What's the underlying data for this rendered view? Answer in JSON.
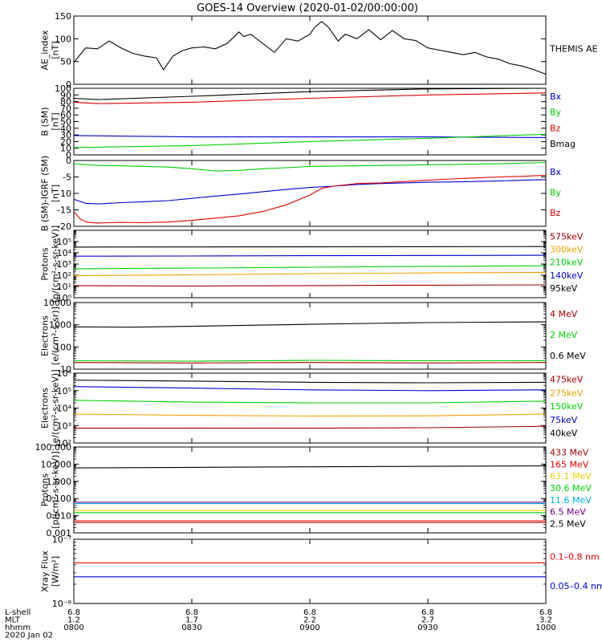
{
  "title": "GOES-14 Overview (2020-01-02/00:00:00)",
  "time_axis": {
    "row_labels": [
      "L-shell",
      "MLT",
      "hhmm",
      "2020 Jan 02"
    ],
    "ticks": [
      {
        "lshell": "6.8",
        "mlt": "1.2",
        "hhmm": "0800"
      },
      {
        "lshell": "6.8",
        "mlt": "1.7",
        "hhmm": "0830"
      },
      {
        "lshell": "6.8",
        "mlt": "2.2",
        "hhmm": "0900"
      },
      {
        "lshell": "6.8",
        "mlt": "2.7",
        "hhmm": "0930"
      },
      {
        "lshell": "6.8",
        "mlt": "3.2",
        "hhmm": "1000"
      }
    ]
  },
  "colors": {
    "black": "#000000",
    "red": "#e00000",
    "green": "#00d000",
    "blue": "#0000d0",
    "orange": "#f0a000",
    "darkred": "#a00000",
    "cyan": "#00b0e0",
    "purple": "#6a0080",
    "yellow": "#e8d000"
  },
  "chart_data": [
    {
      "type": "line",
      "ylabel": "AE_index\n[nT]",
      "scale": "linear",
      "ylim": [
        0,
        150
      ],
      "ytick_labels": [
        "0",
        "50",
        "100",
        "150"
      ],
      "ytick_values": [
        0,
        50,
        100,
        150
      ],
      "x_range_hours": [
        8,
        10
      ],
      "series": [
        {
          "name": "THEMIS AE",
          "color": "#000000",
          "x": [
            8.0,
            8.05,
            8.1,
            8.15,
            8.2,
            8.25,
            8.3,
            8.35,
            8.38,
            8.42,
            8.46,
            8.5,
            8.55,
            8.6,
            8.65,
            8.7,
            8.72,
            8.75,
            8.8,
            8.85,
            8.9,
            8.95,
            9.0,
            9.02,
            9.05,
            9.08,
            9.12,
            9.15,
            9.2,
            9.25,
            9.3,
            9.35,
            9.4,
            9.45,
            9.5,
            9.55,
            9.6,
            9.65,
            9.7,
            9.75,
            9.8,
            9.85,
            9.9,
            9.95,
            10.0
          ],
          "y": [
            48,
            80,
            78,
            95,
            80,
            68,
            62,
            58,
            32,
            62,
            74,
            80,
            82,
            78,
            90,
            115,
            105,
            110,
            90,
            70,
            100,
            95,
            110,
            125,
            138,
            125,
            95,
            110,
            100,
            120,
            98,
            118,
            100,
            96,
            80,
            75,
            70,
            65,
            70,
            60,
            55,
            45,
            40,
            32,
            22
          ]
        }
      ]
    },
    {
      "type": "line",
      "ylabel": "B (SM)\n[nT]",
      "scale": "linear",
      "ylim": [
        0,
        100
      ],
      "ytick_labels": [
        "0",
        "10",
        "20",
        "30",
        "40",
        "50",
        "60",
        "70",
        "80",
        "90",
        "100"
      ],
      "ytick_values": [
        0,
        10,
        20,
        30,
        40,
        50,
        60,
        70,
        80,
        90,
        100
      ],
      "x_range_hours": [
        8,
        10
      ],
      "series": [
        {
          "name": "Bx",
          "color": "#0000d0",
          "x": [
            8.0,
            8.5,
            9.0,
            9.5,
            10.0
          ],
          "y": [
            29,
            27,
            27,
            27,
            26
          ]
        },
        {
          "name": "By",
          "color": "#00d000",
          "x": [
            8.0,
            8.5,
            9.0,
            9.5,
            10.0
          ],
          "y": [
            11,
            14,
            20,
            25,
            31
          ]
        },
        {
          "name": "Bz",
          "color": "#e00000",
          "x": [
            8.0,
            8.1,
            8.5,
            9.0,
            9.5,
            10.0
          ],
          "y": [
            79,
            77,
            79,
            85,
            90,
            93
          ]
        },
        {
          "name": "Bmag",
          "color": "#000000",
          "x": [
            8.0,
            8.1,
            8.5,
            9.0,
            9.5,
            10.0
          ],
          "y": [
            85,
            83,
            88,
            95,
            99,
            100
          ]
        }
      ]
    },
    {
      "type": "line",
      "ylabel": "B (SM)-IGRF (SM)\n[nT]",
      "scale": "linear",
      "ylim": [
        -20,
        0
      ],
      "ytick_labels": [
        "-20",
        "-15",
        "-10",
        "-5",
        "0"
      ],
      "ytick_values": [
        -20,
        -15,
        -10,
        -5,
        0
      ],
      "x_range_hours": [
        8,
        10
      ],
      "series": [
        {
          "name": "Bx",
          "color": "#0000d0",
          "x": [
            8.0,
            8.05,
            8.1,
            8.2,
            8.3,
            8.4,
            8.5,
            8.6,
            8.7,
            8.8,
            8.9,
            9.0,
            9.1,
            9.2,
            9.3,
            9.4,
            9.5,
            9.6,
            9.7,
            9.8,
            9.9,
            10.0
          ],
          "y": [
            -11.8,
            -13.0,
            -13.2,
            -12.8,
            -12.5,
            -12.2,
            -11.5,
            -10.8,
            -10.2,
            -9.5,
            -8.8,
            -8.2,
            -7.8,
            -7.3,
            -7.0,
            -6.8,
            -6.6,
            -6.5,
            -6.4,
            -6.2,
            -6.0,
            -5.8
          ]
        },
        {
          "name": "By",
          "color": "#00d000",
          "x": [
            8.0,
            8.1,
            8.2,
            8.3,
            8.4,
            8.5,
            8.6,
            8.7,
            8.8,
            8.9,
            9.0,
            9.2,
            9.4,
            9.6,
            9.8,
            10.0
          ],
          "y": [
            -1.0,
            -1.5,
            -1.6,
            -1.8,
            -2.0,
            -2.5,
            -3.2,
            -3.0,
            -2.5,
            -2.2,
            -1.8,
            -1.6,
            -1.4,
            -1.2,
            -1.0,
            -0.6
          ]
        },
        {
          "name": "Bz",
          "color": "#e00000",
          "x": [
            8.0,
            8.03,
            8.06,
            8.1,
            8.2,
            8.3,
            8.4,
            8.5,
            8.6,
            8.7,
            8.8,
            8.9,
            9.0,
            9.05,
            9.1,
            9.2,
            9.3,
            9.4,
            9.5,
            9.6,
            9.7,
            9.8,
            9.9,
            10.0
          ],
          "y": [
            -15.5,
            -18,
            -18.8,
            -19.0,
            -18.8,
            -18.9,
            -18.7,
            -18.2,
            -17.5,
            -16.8,
            -15.5,
            -13.5,
            -10.5,
            -8.5,
            -7.8,
            -7.0,
            -6.8,
            -6.4,
            -6.0,
            -5.6,
            -5.3,
            -5.0,
            -4.8,
            -4.5
          ]
        }
      ]
    },
    {
      "type": "line",
      "ylabel": "Protons\n[p/(cm²-s-sr-keV)]",
      "scale": "log",
      "ylim": [
        1,
        1000000
      ],
      "ytick_labels": [
        "10⁰",
        "10¹",
        "10²",
        "10³",
        "10⁴",
        "10⁵"
      ],
      "ytick_values": [
        1,
        10,
        100,
        1000,
        10000,
        100000
      ],
      "x_range_hours": [
        8,
        10
      ],
      "series": [
        {
          "name": "575keV",
          "color": "#a00000",
          "x": [
            8.0,
            8.5,
            9.0,
            9.5,
            10.0
          ],
          "y": [
            12,
            11,
            12,
            13,
            14
          ]
        },
        {
          "name": "300keV",
          "color": "#f0a000",
          "x": [
            8.0,
            8.5,
            9.0,
            9.5,
            10.0
          ],
          "y": [
            90,
            110,
            140,
            160,
            180
          ]
        },
        {
          "name": "210keV",
          "color": "#00d000",
          "x": [
            8.0,
            8.5,
            9.0,
            9.5,
            10.0
          ],
          "y": [
            380,
            430,
            520,
            620,
            700
          ]
        },
        {
          "name": "140keV",
          "color": "#0000d0",
          "x": [
            8.0,
            8.5,
            9.0,
            9.5,
            10.0
          ],
          "y": [
            5000,
            5200,
            5500,
            5700,
            6000
          ]
        },
        {
          "name": "95keV",
          "color": "#000000",
          "x": [
            8.0,
            8.5,
            9.0,
            9.5,
            10.0
          ],
          "y": [
            32000,
            33000,
            34000,
            35000,
            36000
          ]
        }
      ]
    },
    {
      "type": "line",
      "ylabel": "Electrons\n[e/(cm²-s-sr)]",
      "scale": "log",
      "ylim": [
        10,
        10000
      ],
      "ytick_labels": [
        "10",
        "100",
        "1000",
        "10000"
      ],
      "ytick_values": [
        10,
        100,
        1000,
        10000
      ],
      "x_range_hours": [
        8,
        10
      ],
      "series": [
        {
          "name": "4 MeV",
          "color": "#a00000",
          "x": [
            8.0,
            8.5,
            9.0,
            9.5,
            10.0
          ],
          "y": [
            20,
            19,
            20,
            19,
            20
          ]
        },
        {
          "name": "2 MeV",
          "color": "#00d000",
          "x": [
            8.0,
            8.5,
            9.0,
            9.5,
            10.0
          ],
          "y": [
            24,
            23,
            25,
            24,
            24
          ]
        },
        {
          "name": "0.6 MeV",
          "color": "#000000",
          "x": [
            8.0,
            8.25,
            8.5,
            8.75,
            9.0,
            9.25,
            9.5,
            9.75,
            10.0
          ],
          "y": [
            800,
            780,
            850,
            950,
            1050,
            1150,
            1250,
            1300,
            1350
          ]
        }
      ]
    },
    {
      "type": "line",
      "ylabel": "Electrons\n[e/(cm²-s-sr-keV)]",
      "scale": "log",
      "ylim": [
        100,
        1000000
      ],
      "ytick_labels": [
        "10²",
        "10³",
        "10⁴",
        "10⁵",
        "10⁶"
      ],
      "ytick_values": [
        100,
        1000,
        10000,
        100000,
        1000000
      ],
      "x_range_hours": [
        8,
        10
      ],
      "series": [
        {
          "name": "475keV",
          "color": "#a00000",
          "x": [
            8.0,
            8.5,
            9.0,
            9.5,
            10.0
          ],
          "y": [
            700,
            720,
            700,
            750,
            900
          ]
        },
        {
          "name": "275keV",
          "color": "#f0a000",
          "x": [
            8.0,
            8.5,
            9.0,
            9.5,
            10.0
          ],
          "y": [
            4500,
            3800,
            3500,
            3600,
            4500
          ]
        },
        {
          "name": "150keV",
          "color": "#00d000",
          "x": [
            8.0,
            8.5,
            9.0,
            9.5,
            10.0
          ],
          "y": [
            28000,
            22000,
            20000,
            20000,
            25000
          ]
        },
        {
          "name": "75keV",
          "color": "#0000d0",
          "x": [
            8.0,
            8.5,
            9.0,
            9.5,
            10.0
          ],
          "y": [
            170000,
            140000,
            110000,
            100000,
            110000
          ]
        },
        {
          "name": "40keV",
          "color": "#000000",
          "x": [
            8.0,
            8.5,
            9.0,
            9.5,
            10.0
          ],
          "y": [
            400000,
            350000,
            300000,
            280000,
            300000
          ]
        }
      ]
    },
    {
      "type": "line",
      "ylabel": "Protons\n[p/(cm²-s-sr-keV)]",
      "scale": "log",
      "ylim": [
        0.001,
        100
      ],
      "ytick_labels": [
        "0.001",
        "0.010",
        "0.100",
        "1.000",
        "10.000",
        "100.000"
      ],
      "ytick_values": [
        0.001,
        0.01,
        0.1,
        1,
        10,
        100
      ],
      "x_range_hours": [
        8,
        10
      ],
      "series": [
        {
          "name": "433 MeV",
          "color": "#a00000",
          "x": [
            8.0,
            10.0
          ],
          "y": [
            0.004,
            0.004
          ]
        },
        {
          "name": "165 MeV",
          "color": "#e00000",
          "x": [
            8.0,
            10.0
          ],
          "y": [
            0.005,
            0.005
          ]
        },
        {
          "name": "63.1 MeV",
          "color": "#e8d000",
          "x": [
            8.0,
            10.0
          ],
          "y": [
            0.02,
            0.02
          ]
        },
        {
          "name": "30.6 MeV",
          "color": "#00d000",
          "x": [
            8.0,
            10.0
          ],
          "y": [
            0.015,
            0.015
          ]
        },
        {
          "name": "11.6 MeV",
          "color": "#00b0e0",
          "x": [
            8.0,
            10.0
          ],
          "y": [
            0.05,
            0.05
          ]
        },
        {
          "name": "6.5 MeV",
          "color": "#6a0080",
          "x": [
            8.0,
            10.0
          ],
          "y": [
            0.06,
            0.06
          ]
        },
        {
          "name": "2.5 MeV",
          "color": "#000000",
          "x": [
            8.0,
            8.5,
            9.0,
            9.5,
            10.0
          ],
          "y": [
            6,
            6.5,
            7,
            7.5,
            8
          ]
        }
      ]
    },
    {
      "type": "line",
      "ylabel": "Xray Flux\n[W/m²]",
      "scale": "log",
      "ylim": [
        1e-08,
        1e-07
      ],
      "ytick_labels": [
        "10⁻⁸",
        "10⁻⁷"
      ],
      "ytick_values": [
        1e-08,
        1e-07
      ],
      "x_range_hours": [
        8,
        10
      ],
      "series": [
        {
          "name": "0.1–0.8 nm",
          "color": "#e00000",
          "x": [
            8.0,
            10.0
          ],
          "y": [
            4.3e-08,
            4.3e-08
          ]
        },
        {
          "name": "0.05–0.4 nm",
          "color": "#0000d0",
          "x": [
            8.0,
            10.0
          ],
          "y": [
            2.6e-08,
            2.6e-08
          ]
        }
      ]
    }
  ]
}
